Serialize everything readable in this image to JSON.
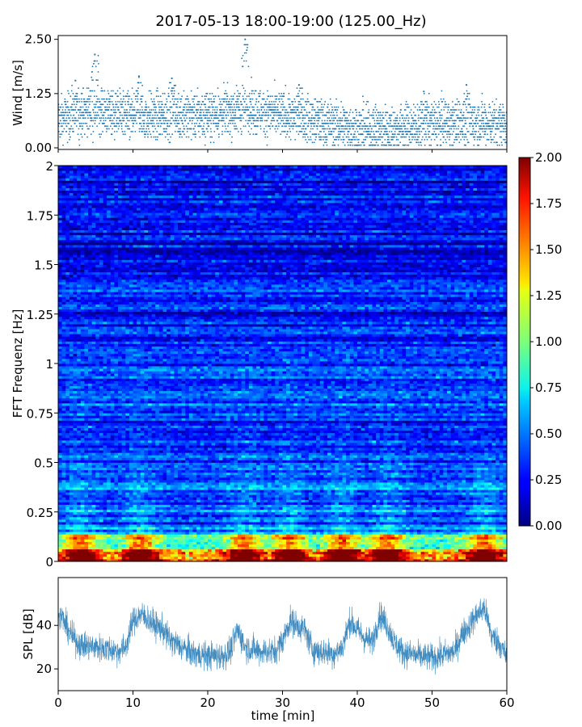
{
  "chart_data": [
    {
      "type": "scatter",
      "name": "wind",
      "title": "2017-05-13 18:00-19:00 (125.00_Hz)",
      "ylabel": "Wind [m/s]",
      "ylim": [
        0,
        2.55
      ],
      "xlim": [
        0,
        60
      ],
      "yticks": [
        0,
        1.25,
        2.5
      ],
      "ytick_labels": [
        "0.00",
        "1.25",
        "2.50"
      ],
      "color": "#1f77b4",
      "peaks": [
        {
          "x": 4.9,
          "y": 2.15
        },
        {
          "x": 25.0,
          "y": 2.5
        },
        {
          "x": 10.8,
          "y": 1.65
        },
        {
          "x": 15.2,
          "y": 1.6
        },
        {
          "x": 32.2,
          "y": 1.45
        },
        {
          "x": 54.6,
          "y": 1.45
        },
        {
          "x": 48.9,
          "y": 1.3
        },
        {
          "x": 2.3,
          "y": 1.55
        }
      ],
      "baseline_profile": [
        {
          "x": 0,
          "y": 0.65
        },
        {
          "x": 5,
          "y": 0.9
        },
        {
          "x": 10,
          "y": 0.7
        },
        {
          "x": 15,
          "y": 0.75
        },
        {
          "x": 20,
          "y": 0.75
        },
        {
          "x": 25,
          "y": 0.9
        },
        {
          "x": 30,
          "y": 0.75
        },
        {
          "x": 35,
          "y": 0.6
        },
        {
          "x": 40,
          "y": 0.45
        },
        {
          "x": 45,
          "y": 0.45
        },
        {
          "x": 50,
          "y": 0.55
        },
        {
          "x": 55,
          "y": 0.6
        },
        {
          "x": 60,
          "y": 0.55
        }
      ]
    },
    {
      "type": "heatmap",
      "name": "spectrogram",
      "ylabel": "FFT Frequenz [Hz]",
      "xlim": [
        0,
        60
      ],
      "ylim": [
        0,
        2
      ],
      "yticks": [
        0,
        0.25,
        0.5,
        0.75,
        1,
        1.25,
        1.5,
        1.75,
        2
      ],
      "ytick_labels": [
        "0",
        "0.25",
        "0.5",
        "0.75",
        "1",
        "1.25",
        "1.5",
        "1.75",
        "2"
      ],
      "colormap": "jet",
      "colorbar": {
        "min": 0,
        "max": 2,
        "ticks": [
          0,
          0.25,
          0.5,
          0.75,
          1,
          1.25,
          1.5,
          1.75,
          2
        ],
        "tick_labels": [
          "0.00",
          "0.25",
          "0.50",
          "0.75",
          "1.00",
          "1.25",
          "1.50",
          "1.75",
          "2.00"
        ]
      },
      "energy_bursts_min": [
        3,
        11,
        25,
        31,
        38,
        44,
        57
      ]
    },
    {
      "type": "line",
      "name": "spl",
      "ylabel": "SPL [dB]",
      "xlabel": "time [min]",
      "xlim": [
        0,
        60
      ],
      "ylim": [
        10,
        62
      ],
      "yticks": [
        20,
        40
      ],
      "ytick_labels": [
        "20",
        "40"
      ],
      "xticks": [
        0,
        10,
        20,
        30,
        40,
        50,
        60
      ],
      "xtick_labels": [
        "0",
        "10",
        "20",
        "30",
        "40",
        "50",
        "60"
      ],
      "color": "#1f77b4",
      "x": [
        0,
        0.5,
        1,
        2,
        3,
        5,
        7,
        8,
        9,
        10,
        11,
        12,
        13,
        14,
        15,
        16,
        18,
        20,
        22,
        23,
        24,
        25,
        27,
        29,
        30,
        31,
        32,
        33,
        34,
        35,
        37,
        38,
        39,
        40,
        41,
        42,
        43,
        44,
        45,
        46,
        48,
        50,
        52,
        53,
        54,
        55,
        56,
        57,
        58,
        59,
        60
      ],
      "values": [
        43,
        44,
        40,
        34,
        31,
        30,
        29,
        28,
        30,
        42,
        45,
        43,
        40,
        38,
        33,
        31,
        27,
        26,
        26,
        28,
        38,
        30,
        28,
        28,
        33,
        42,
        40,
        38,
        29,
        28,
        27,
        30,
        42,
        38,
        34,
        32,
        45,
        40,
        32,
        28,
        26,
        25,
        27,
        28,
        36,
        40,
        45,
        48,
        35,
        32,
        25
      ]
    }
  ]
}
